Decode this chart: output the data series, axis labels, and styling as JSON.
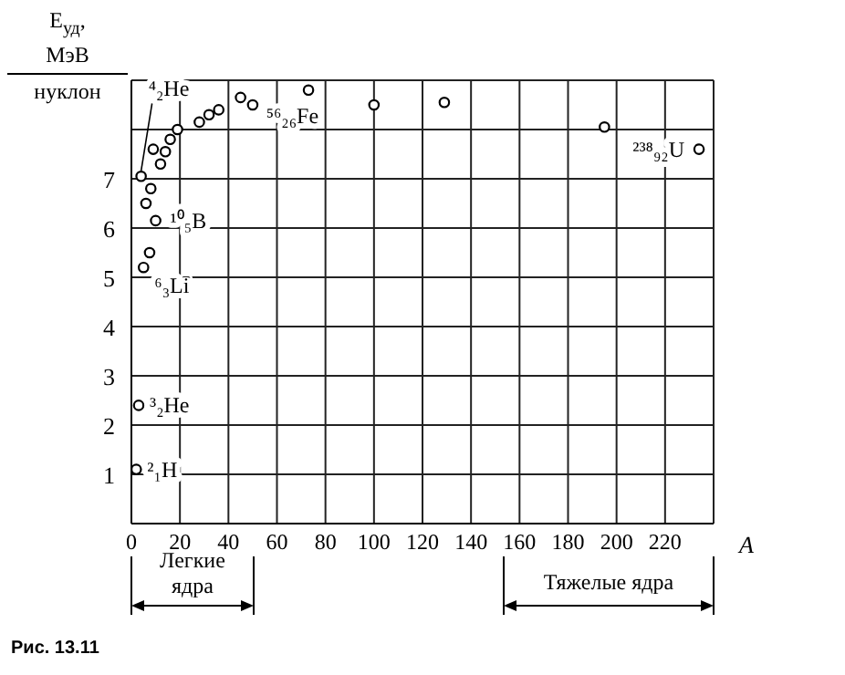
{
  "chart_data": {
    "type": "scatter",
    "xlabel": "A",
    "ylabel": "E$_{уд}$, МэВ нуклон",
    "marker": "circle",
    "grid": true,
    "xlim": [
      0,
      240
    ],
    "xticks": [
      0,
      20,
      40,
      60,
      80,
      100,
      120,
      140,
      160,
      180,
      200,
      220,
      {
        "value": 240,
        "label": null
      }
    ],
    "ylim": [
      0,
      9
    ],
    "yticks": [
      1,
      2,
      3,
      4,
      5,
      6,
      7,
      {
        "value": 8,
        "label": null
      },
      {
        "value": 9,
        "label": null
      }
    ],
    "series": [
      {
        "color": "#000000",
        "x": [
          2,
          3,
          5,
          6,
          7.5,
          8,
          9,
          10,
          12,
          14,
          16,
          19,
          28,
          32,
          36,
          45,
          50,
          73,
          100,
          129,
          195,
          234
        ],
        "values": [
          1.1,
          2.4,
          5.2,
          6.5,
          5.5,
          6.8,
          7.6,
          6.15,
          7.3,
          7.55,
          7.8,
          8.0,
          8.15,
          8.3,
          8.4,
          8.65,
          8.5,
          8.8,
          8.5,
          8.55,
          8.05,
          7.6
        ]
      },
      {
        "color": "#000000",
        "x": [
          4
        ],
        "values": [
          7.05
        ]
      }
    ],
    "annotations": [
      {
        "text": "²₁H",
        "x": 2,
        "y": 1.1
      },
      {
        "text": "³₂He",
        "x": 3,
        "y": 2.4
      },
      {
        "text": "⁶₃Li",
        "x": 5,
        "y": 5.2
      },
      {
        "text": "¹⁰₅B",
        "x": 10,
        "y": 6.15
      },
      {
        "text": "⁴₂He",
        "x": 4,
        "y": 7.05
      },
      {
        "text": "⁵⁶₂₆Fe",
        "x": 45,
        "y": 8.65
      },
      {
        "text": "²³⁸₉₂U",
        "x": 234,
        "y": 7.6
      },
      "Легкие ядра",
      "Тяжелые ядра",
      "Рис. 13.11"
    ]
  }
}
